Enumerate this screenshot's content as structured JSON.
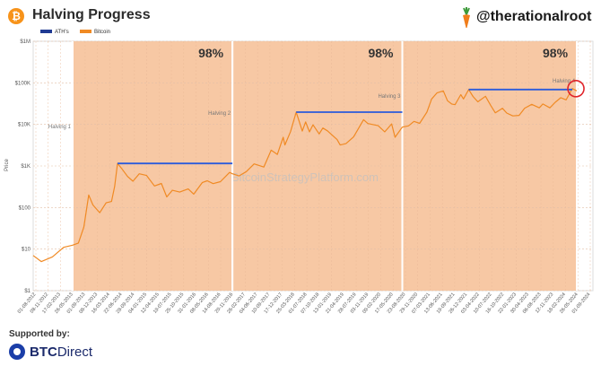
{
  "header": {
    "title": "Halving Progress",
    "logo_icon": "bitcoin-logo-icon",
    "logo_glyph": "₿",
    "handle": "@therationalroot",
    "handle_icon": "carrot-icon"
  },
  "legend": [
    {
      "label": "ATH's",
      "color": "#1f3a93"
    },
    {
      "label": "Bitcoin",
      "color": "#f08a24"
    }
  ],
  "footer": {
    "supported_label": "Supported by:",
    "sponsor_bold": "BTC",
    "sponsor_rest": "Direct",
    "sponsor_icon": "btcdirect-logo-icon"
  },
  "chart_data": {
    "type": "line",
    "ylabel": "Price",
    "yscale": "log",
    "ylim": [
      1,
      1000000
    ],
    "yticks": [
      1,
      10,
      100,
      1000,
      10000,
      100000,
      1000000
    ],
    "ytick_labels": [
      "$1",
      "$10",
      "$100",
      "$1K",
      "$10K",
      "$100K",
      "$1M"
    ],
    "xlim": [
      "2012-01-08",
      "2024-08-31"
    ],
    "xtick_labels": [
      "01-08-2012",
      "08-11-2012",
      "17-02-2013",
      "26-05-2013",
      "01-09-2013",
      "08-12-2013",
      "16-03-2014",
      "22-06-2014",
      "28-09-2014",
      "04-01-2015",
      "12-04-2015",
      "19-07-2015",
      "25-10-2015",
      "31-01-2016",
      "08-05-2016",
      "14-08-2016",
      "20-11-2016",
      "26-02-2017",
      "04-06-2017",
      "10-09-2017",
      "17-12-2017",
      "25-03-2018",
      "01-07-2018",
      "07-10-2018",
      "13-01-2019",
      "21-04-2019",
      "28-07-2019",
      "03-11-2019",
      "09-02-2020",
      "17-05-2020",
      "23-08-2020",
      "29-11-2020",
      "07-03-2021",
      "13-06-2021",
      "19-09-2021",
      "26-12-2021",
      "03-04-2022",
      "10-07-2022",
      "16-10-2022",
      "22-01-2023",
      "30-04-2023",
      "06-08-2023",
      "12-11-2023",
      "18-02-2024",
      "26-05-2024",
      "01-09-2024"
    ],
    "watermark": "BitcoinStrategyPlatform.com",
    "halvings": [
      {
        "label": "Halving 1",
        "date": "2012-11-28"
      },
      {
        "label": "Halving 2",
        "date": "2016-07-09"
      },
      {
        "label": "Halving 3",
        "date": "2020-05-11"
      },
      {
        "label": "Halving 4",
        "date": "2024-04-20"
      }
    ],
    "cycle_progress": [
      {
        "start": "2012-11-28",
        "end": "2016-07-09",
        "label": "98%"
      },
      {
        "start": "2016-07-09",
        "end": "2020-05-11",
        "label": "98%"
      },
      {
        "start": "2020-05-11",
        "end": "2024-04-20",
        "label": "98%"
      }
    ],
    "ath_levels": [
      {
        "from": "2013-12-04",
        "to": "2016-07-09",
        "value": 1150
      },
      {
        "from": "2017-12-17",
        "to": "2020-05-11",
        "value": 19700
      },
      {
        "from": "2021-11-10",
        "to": "2024-03-14",
        "value": 69000
      }
    ],
    "series": [
      {
        "name": "Bitcoin",
        "color": "#f08a24",
        "points": [
          [
            "2012-01-08",
            7
          ],
          [
            "2012-03-15",
            5
          ],
          [
            "2012-06-15",
            6.5
          ],
          [
            "2012-09-15",
            11
          ],
          [
            "2012-11-28",
            12.4
          ],
          [
            "2013-01-15",
            14
          ],
          [
            "2013-03-01",
            34
          ],
          [
            "2013-04-10",
            200
          ],
          [
            "2013-05-15",
            115
          ],
          [
            "2013-07-10",
            75
          ],
          [
            "2013-09-01",
            130
          ],
          [
            "2013-10-15",
            140
          ],
          [
            "2013-11-10",
            320
          ],
          [
            "2013-12-04",
            1150
          ],
          [
            "2014-01-10",
            850
          ],
          [
            "2014-02-25",
            560
          ],
          [
            "2014-04-10",
            430
          ],
          [
            "2014-06-01",
            650
          ],
          [
            "2014-08-01",
            590
          ],
          [
            "2014-10-05",
            330
          ],
          [
            "2014-12-01",
            380
          ],
          [
            "2015-01-14",
            180
          ],
          [
            "2015-03-01",
            260
          ],
          [
            "2015-05-01",
            235
          ],
          [
            "2015-07-10",
            280
          ],
          [
            "2015-08-25",
            210
          ],
          [
            "2015-11-04",
            400
          ],
          [
            "2015-12-15",
            440
          ],
          [
            "2016-02-01",
            375
          ],
          [
            "2016-04-01",
            420
          ],
          [
            "2016-06-15",
            700
          ],
          [
            "2016-07-09",
            650
          ],
          [
            "2016-09-01",
            575
          ],
          [
            "2016-11-01",
            730
          ],
          [
            "2017-01-04",
            1120
          ],
          [
            "2017-03-25",
            940
          ],
          [
            "2017-05-25",
            2400
          ],
          [
            "2017-07-15",
            1900
          ],
          [
            "2017-09-01",
            4900
          ],
          [
            "2017-09-15",
            3200
          ],
          [
            "2017-11-01",
            6700
          ],
          [
            "2017-12-17",
            19700
          ],
          [
            "2018-02-06",
            6900
          ],
          [
            "2018-03-05",
            11500
          ],
          [
            "2018-04-06",
            6600
          ],
          [
            "2018-05-05",
            9800
          ],
          [
            "2018-06-25",
            5900
          ],
          [
            "2018-07-25",
            8200
          ],
          [
            "2018-09-01",
            7000
          ],
          [
            "2018-11-20",
            4300
          ],
          [
            "2018-12-15",
            3200
          ],
          [
            "2019-02-01",
            3450
          ],
          [
            "2019-04-05",
            5000
          ],
          [
            "2019-06-26",
            13000
          ],
          [
            "2019-08-01",
            10500
          ],
          [
            "2019-10-25",
            9300
          ],
          [
            "2019-12-18",
            6600
          ],
          [
            "2020-02-13",
            10300
          ],
          [
            "2020-03-12",
            4900
          ],
          [
            "2020-05-11",
            8600
          ],
          [
            "2020-07-01",
            9200
          ],
          [
            "2020-08-15",
            11800
          ],
          [
            "2020-10-01",
            10600
          ],
          [
            "2020-11-30",
            19700
          ],
          [
            "2021-01-08",
            41000
          ],
          [
            "2021-02-21",
            57000
          ],
          [
            "2021-04-14",
            64000
          ],
          [
            "2021-05-19",
            37000
          ],
          [
            "2021-06-22",
            31000
          ],
          [
            "2021-07-20",
            29800
          ],
          [
            "2021-09-06",
            52000
          ],
          [
            "2021-09-28",
            41000
          ],
          [
            "2021-11-10",
            69000
          ],
          [
            "2021-12-15",
            47000
          ],
          [
            "2022-01-24",
            35000
          ],
          [
            "2022-03-28",
            47500
          ],
          [
            "2022-05-12",
            28000
          ],
          [
            "2022-06-18",
            19000
          ],
          [
            "2022-08-15",
            24400
          ],
          [
            "2022-09-20",
            18800
          ],
          [
            "2022-11-09",
            16000
          ],
          [
            "2022-12-31",
            16500
          ],
          [
            "2023-02-15",
            24500
          ],
          [
            "2023-04-14",
            30400
          ],
          [
            "2023-06-15",
            25000
          ],
          [
            "2023-07-15",
            31000
          ],
          [
            "2023-09-11",
            25000
          ],
          [
            "2023-10-25",
            34000
          ],
          [
            "2023-12-10",
            44000
          ],
          [
            "2024-01-23",
            39000
          ],
          [
            "2024-03-14",
            73000
          ],
          [
            "2024-04-20",
            64000
          ]
        ]
      }
    ]
  }
}
